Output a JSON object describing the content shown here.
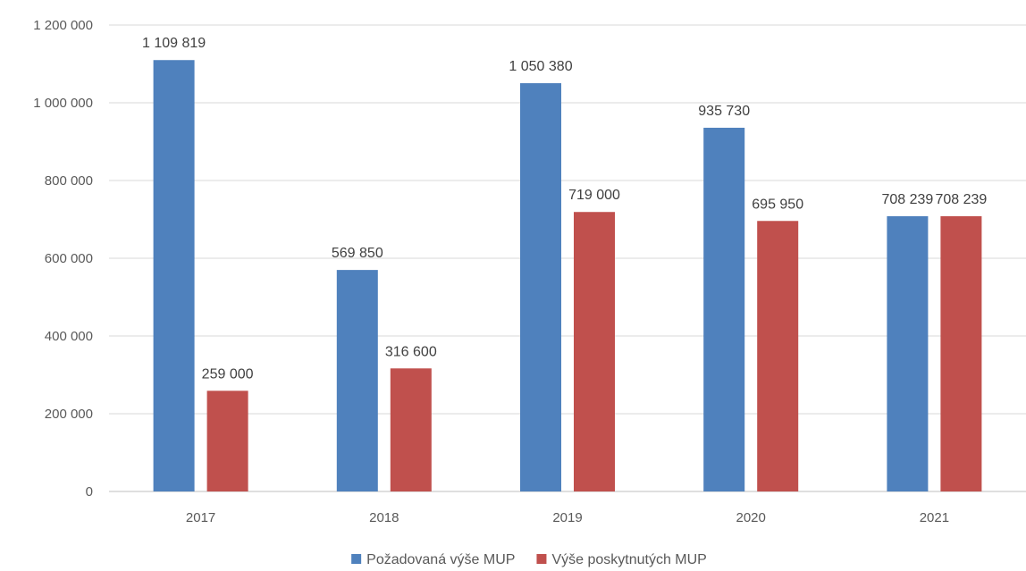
{
  "chart_data": {
    "type": "bar",
    "categories": [
      "2017",
      "2018",
      "2019",
      "2020",
      "2021"
    ],
    "series": [
      {
        "name": "Požadovaná výše MUP",
        "color": "#4f81bd",
        "values": [
          1109819,
          569850,
          1050380,
          935730,
          708239
        ],
        "labels": [
          "1 109 819",
          "569 850",
          "1 050 380",
          "935 730",
          "708 239"
        ]
      },
      {
        "name": "Výše poskytnutých MUP",
        "color": "#c0504d",
        "values": [
          259000,
          316600,
          719000,
          695950,
          708239
        ],
        "labels": [
          "259 000",
          "316 600",
          "719 000",
          "695 950",
          "708 239"
        ]
      }
    ],
    "ylim": [
      0,
      1200000
    ],
    "yticks": [
      0,
      200000,
      400000,
      600000,
      800000,
      1000000,
      1200000
    ],
    "ytick_labels": [
      "0",
      "200 000",
      "400 000",
      "600 000",
      "800 000",
      "1 000 000",
      "1 200 000"
    ],
    "grid": true,
    "legend_position": "bottom",
    "title": "",
    "xlabel": "",
    "ylabel": ""
  }
}
